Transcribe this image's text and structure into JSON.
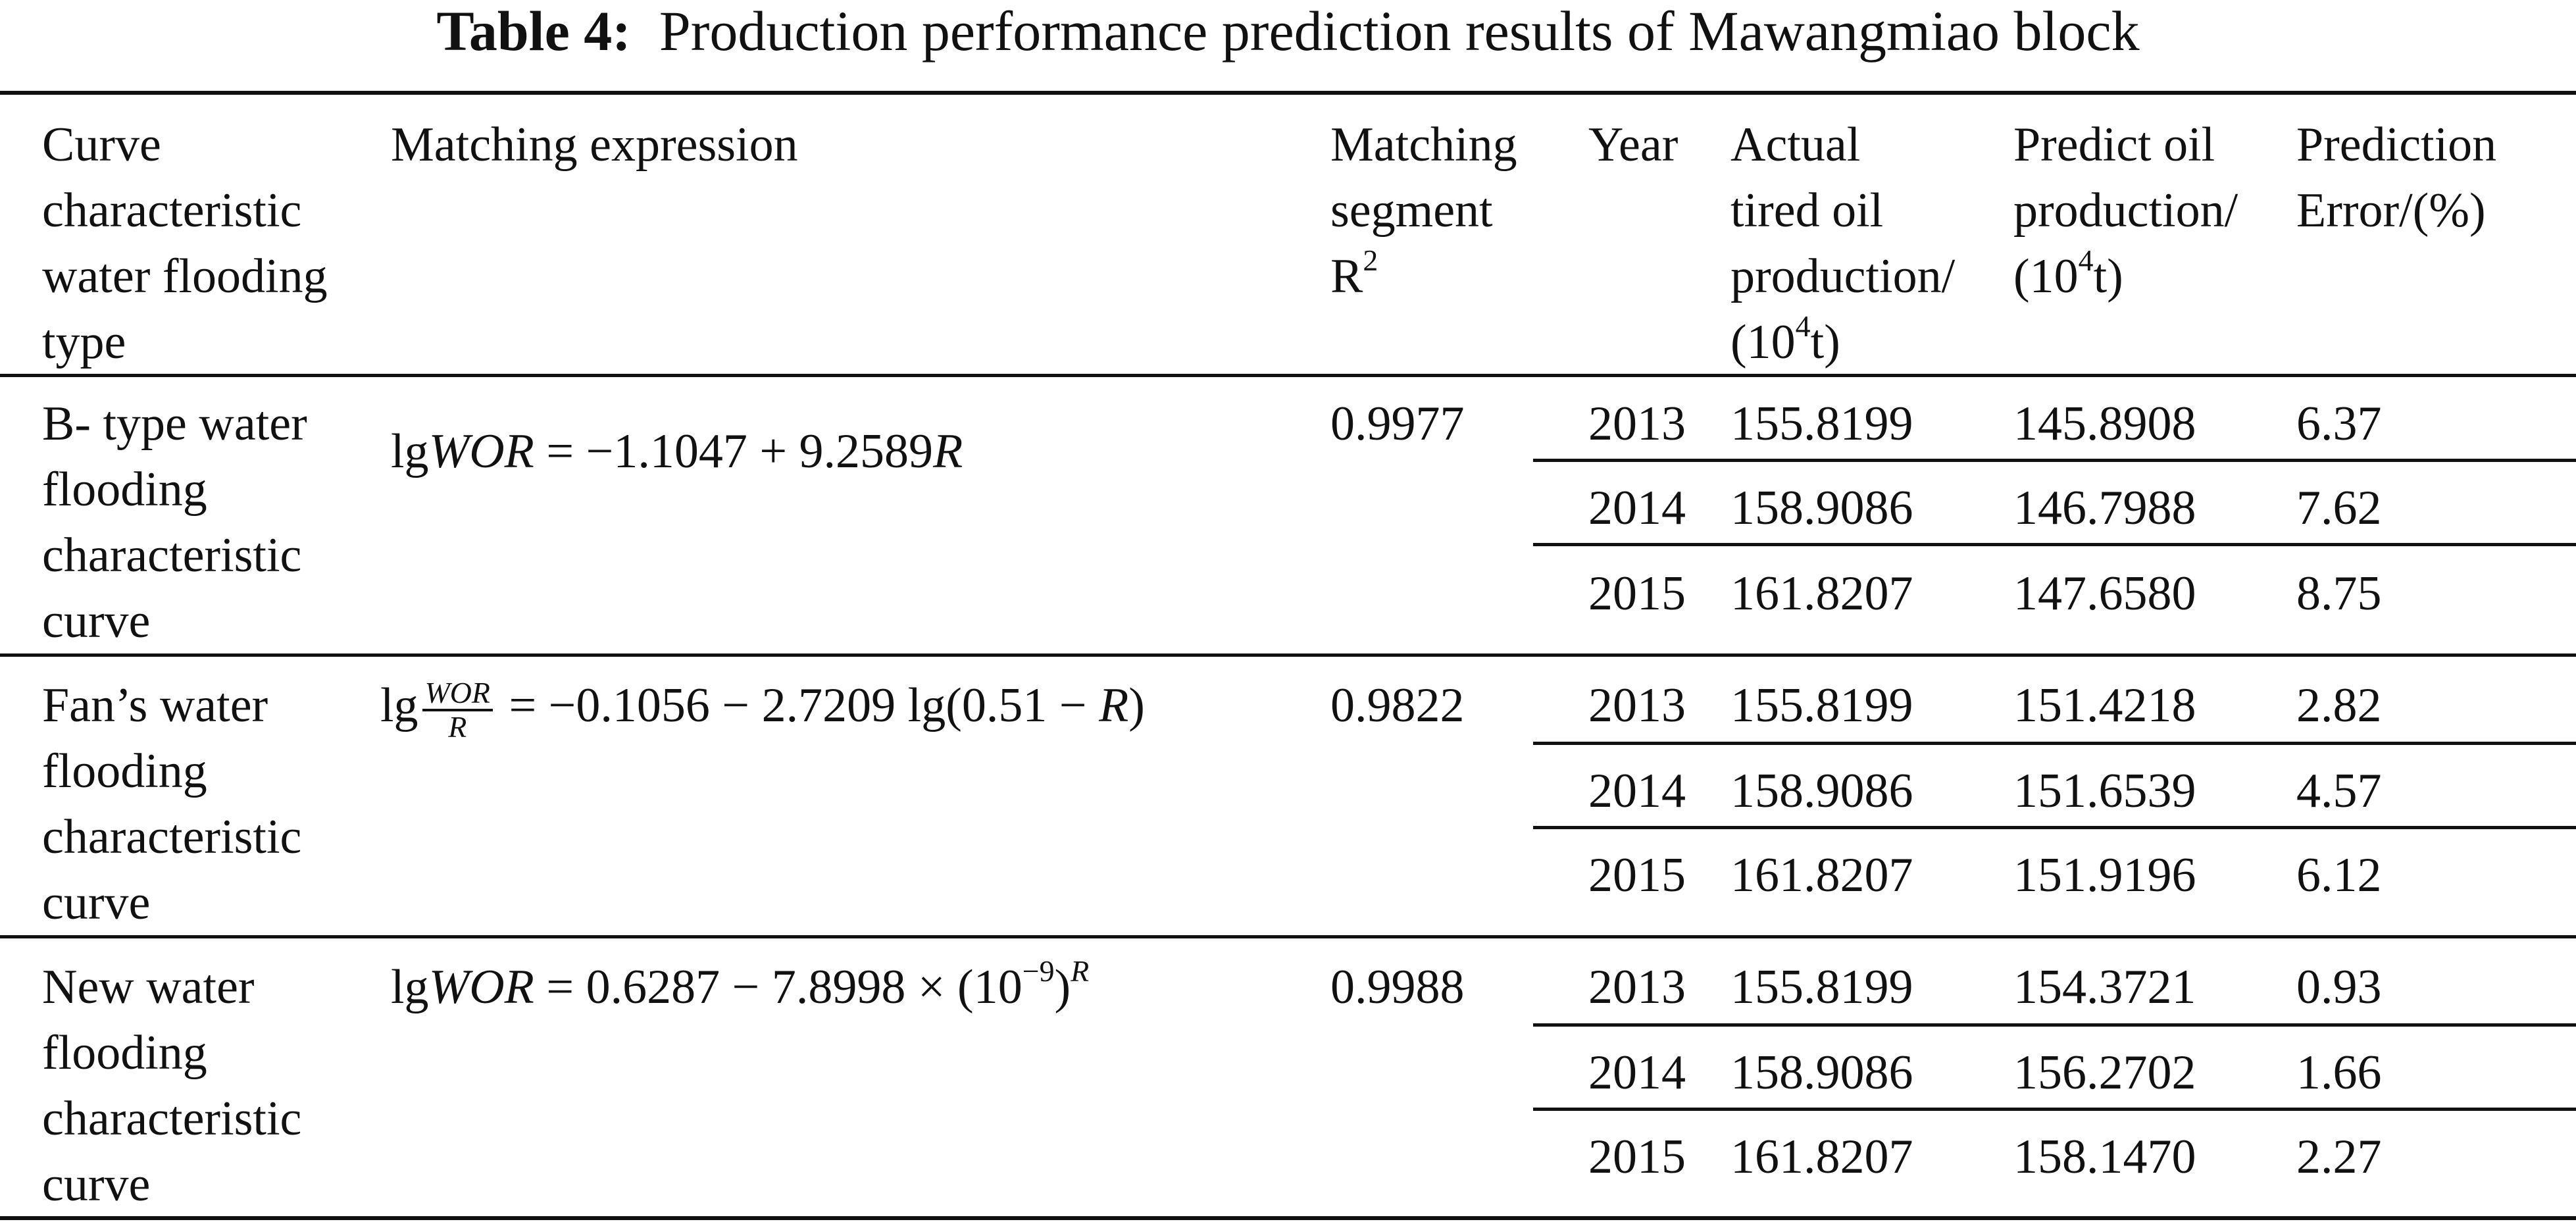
{
  "caption": {
    "label": "Table 4:",
    "text": "Production performance prediction results of Mawangmiao block"
  },
  "headers": {
    "type": [
      "Curve",
      "characteristic",
      "water flooding",
      "type"
    ],
    "expression": [
      "Matching expression"
    ],
    "r2": [
      "Matching",
      "segment",
      "R"
    ],
    "r2_sup": "2",
    "year": [
      "Year"
    ],
    "actual": [
      "Actual",
      "tired oil",
      "production/",
      "(10"
    ],
    "actual_sup": "4",
    "actual_tail": "t)",
    "predict": [
      "Predict oil",
      "production/",
      "(10"
    ],
    "predict_sup": "4",
    "predict_tail": "t)",
    "error": [
      "Prediction",
      "Error/(%)"
    ]
  },
  "groups": [
    {
      "type_lines": [
        "B- type water",
        "flooding",
        "characteristic",
        "curve"
      ],
      "expr": {
        "lg": "lg",
        "var": "WOR",
        "rhs": " = −1.1047 + 9.2589",
        "rvar": "R"
      },
      "r2": "0.9977",
      "rows": [
        {
          "year": "2013",
          "actual": "155.8199",
          "predict": "145.8908",
          "error": "6.37"
        },
        {
          "year": "2014",
          "actual": "158.9086",
          "predict": "146.7988",
          "error": "7.62"
        },
        {
          "year": "2015",
          "actual": "161.8207",
          "predict": "147.6580",
          "error": "8.75"
        }
      ]
    },
    {
      "type_lines": [
        "Fan’s water",
        "flooding",
        "characteristic",
        "curve"
      ],
      "expr": {
        "lg": "lg",
        "num": "WOR",
        "den": "R",
        "rhs": " = −0.1056 − 2.7209 lg(0.51 − ",
        "rvar": "R",
        "close": ")"
      },
      "r2": "0.9822",
      "rows": [
        {
          "year": "2013",
          "actual": "155.8199",
          "predict": "151.4218",
          "error": "2.82"
        },
        {
          "year": "2014",
          "actual": "158.9086",
          "predict": "151.6539",
          "error": "4.57"
        },
        {
          "year": "2015",
          "actual": "161.8207",
          "predict": "151.9196",
          "error": "6.12"
        }
      ]
    },
    {
      "type_lines": [
        "New water",
        "flooding",
        "characteristic",
        "curve"
      ],
      "expr": {
        "lg": "lg",
        "var": "WOR",
        "rhs": " = 0.6287 − 7.8998 × (10",
        "exp": "−9",
        "close": ")",
        "rvar": "R"
      },
      "r2": "0.9988",
      "rows": [
        {
          "year": "2013",
          "actual": "155.8199",
          "predict": "154.3721",
          "error": "0.93"
        },
        {
          "year": "2014",
          "actual": "158.9086",
          "predict": "156.2702",
          "error": "1.66"
        },
        {
          "year": "2015",
          "actual": "161.8207",
          "predict": "158.1470",
          "error": "2.27"
        }
      ]
    }
  ]
}
